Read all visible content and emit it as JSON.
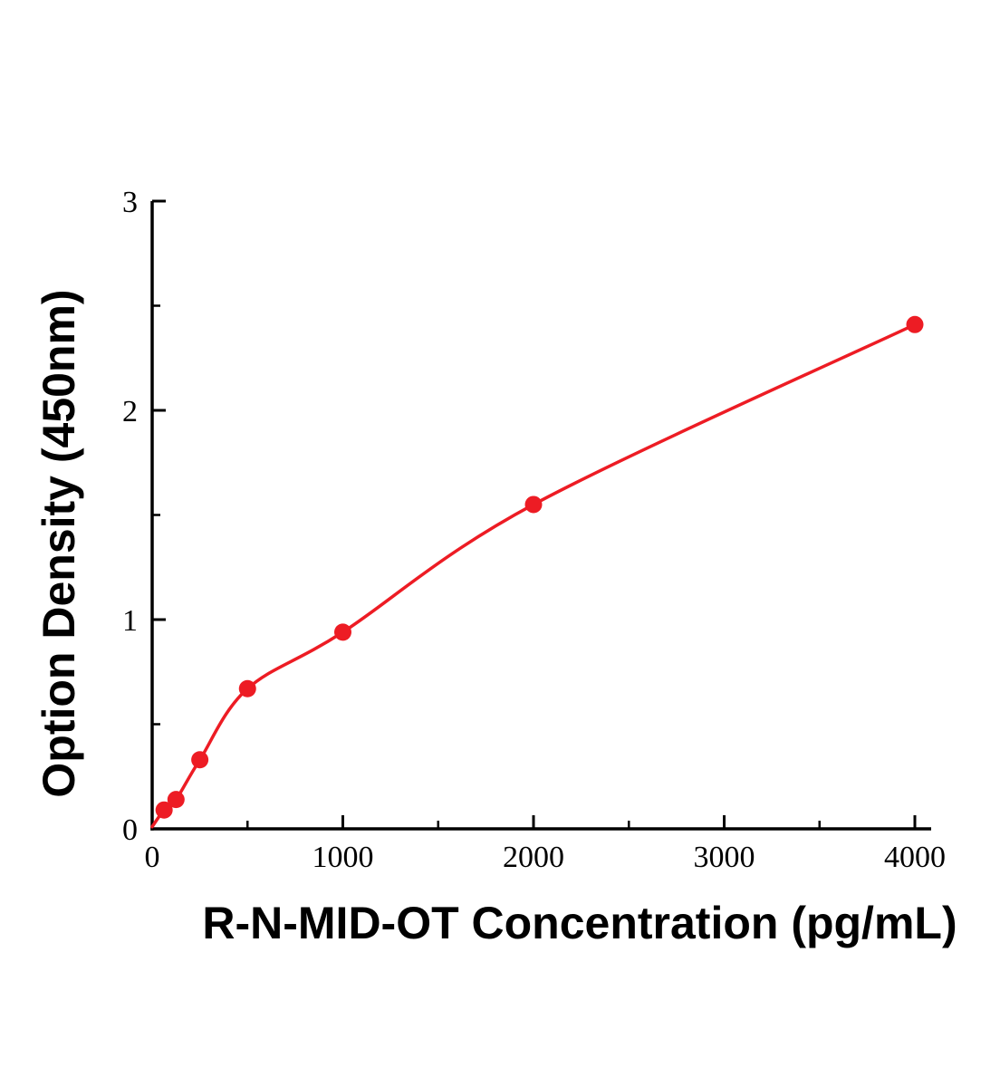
{
  "chart_data": {
    "type": "scatter",
    "title": "",
    "xlabel": "R-N-MID-OT Concentration (pg/mL)",
    "ylabel": "Option Density (450nm)",
    "x": [
      62.5,
      125,
      250,
      500,
      1000,
      2000,
      4000
    ],
    "y": [
      0.09,
      0.14,
      0.33,
      0.67,
      0.94,
      1.55,
      2.41
    ],
    "curve_start": {
      "x": 0,
      "y": 0.01
    },
    "xlim": [
      0,
      4000
    ],
    "ylim": [
      0,
      3
    ],
    "x_ticks": [
      {
        "value": 0,
        "label": "0"
      },
      {
        "value": 1000,
        "label": "1000"
      },
      {
        "value": 2000,
        "label": "2000"
      },
      {
        "value": 3000,
        "label": "3000"
      },
      {
        "value": 4000,
        "label": "4000"
      }
    ],
    "x_minor_ticks": [
      500,
      1500,
      2500,
      3500
    ],
    "y_ticks": [
      {
        "value": 0,
        "label": "0"
      },
      {
        "value": 1,
        "label": "1"
      },
      {
        "value": 2,
        "label": "2"
      },
      {
        "value": 3,
        "label": "3"
      }
    ],
    "y_minor_ticks": [
      0.5,
      1.5,
      2.5
    ],
    "grid": false,
    "legend": false,
    "line_color": "#ed1c24",
    "point_color": "#ed1c24",
    "axis_color": "#000000"
  }
}
